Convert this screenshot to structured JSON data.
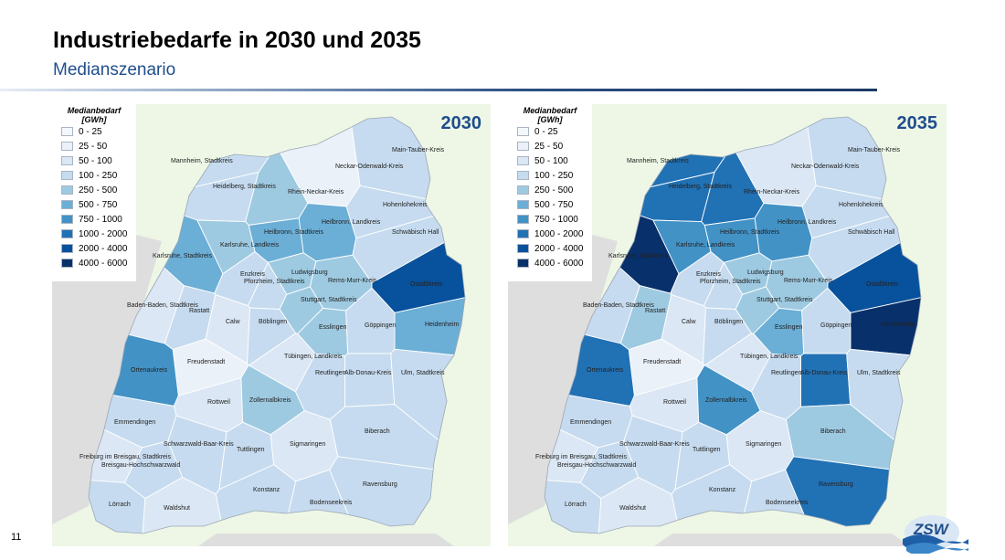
{
  "slide": {
    "title": "Industriebedarfe in 2030 und 2035",
    "subtitle": "Medianszenario",
    "page_number": "11",
    "logo_text": "ZSW"
  },
  "legend": {
    "title_line1": "Medianbedarf",
    "title_line2": "[GWh]",
    "classes": [
      {
        "label": "0 - 25",
        "color": "#f4f7fb"
      },
      {
        "label": "25 - 50",
        "color": "#eaf1f9"
      },
      {
        "label": "50 - 100",
        "color": "#dbe7f4"
      },
      {
        "label": "100 - 250",
        "color": "#c6dbef"
      },
      {
        "label": "250 - 500",
        "color": "#9ecae1"
      },
      {
        "label": "500 - 750",
        "color": "#6baed6"
      },
      {
        "label": "750 - 1000",
        "color": "#4292c6"
      },
      {
        "label": "1000 - 2000",
        "color": "#2171b5"
      },
      {
        "label": "2000 - 4000",
        "color": "#08519c"
      },
      {
        "label": "4000 - 6000",
        "color": "#08306b"
      }
    ]
  },
  "maps": [
    {
      "year": "2030"
    },
    {
      "year": "2035"
    }
  ],
  "regions": [
    {
      "name": "Main-Tauber-Kreis",
      "class_2030": 3,
      "class_2035": 3
    },
    {
      "name": "Mannheim, Stadtkreis",
      "class_2030": 3,
      "class_2035": 7
    },
    {
      "name": "Neckar-Odenwald-Kreis",
      "class_2030": 1,
      "class_2035": 2
    },
    {
      "name": "Heidelberg, Stadtkreis",
      "class_2030": 3,
      "class_2035": 7
    },
    {
      "name": "Rhein-Neckar-Kreis",
      "class_2030": 4,
      "class_2035": 7
    },
    {
      "name": "Hohenlohekreis",
      "class_2030": 3,
      "class_2035": 3
    },
    {
      "name": "Heilbronn, Landkreis",
      "class_2030": 5,
      "class_2035": 6
    },
    {
      "name": "Heilbronn, Stadtkreis",
      "class_2030": 5,
      "class_2035": 6
    },
    {
      "name": "Schwäbisch Hall",
      "class_2030": 3,
      "class_2035": 3
    },
    {
      "name": "Karlsruhe, Landkreis",
      "class_2030": 4,
      "class_2035": 6
    },
    {
      "name": "Karlsruhe, Stadtkreis",
      "class_2030": 5,
      "class_2035": 9
    },
    {
      "name": "Enzkreis",
      "class_2030": 3,
      "class_2035": 3
    },
    {
      "name": "Ludwigsburg",
      "class_2030": 4,
      "class_2035": 4
    },
    {
      "name": "Pforzheim, Stadtkreis",
      "class_2030": 3,
      "class_2035": 3
    },
    {
      "name": "Rems-Murr-Kreis",
      "class_2030": 4,
      "class_2035": 4
    },
    {
      "name": "Ostalbkreis",
      "class_2030": 8,
      "class_2035": 8
    },
    {
      "name": "Stuttgart, Stadtkreis",
      "class_2030": 4,
      "class_2035": 4
    },
    {
      "name": "Baden-Baden, Stadtkreis",
      "class_2030": 2,
      "class_2035": 3
    },
    {
      "name": "Rastatt",
      "class_2030": 3,
      "class_2035": 4
    },
    {
      "name": "Calw",
      "class_2030": 2,
      "class_2035": 2
    },
    {
      "name": "Böblingen",
      "class_2030": 3,
      "class_2035": 3
    },
    {
      "name": "Esslingen",
      "class_2030": 4,
      "class_2035": 5
    },
    {
      "name": "Göppingen",
      "class_2030": 3,
      "class_2035": 3
    },
    {
      "name": "Heidenheim",
      "class_2030": 5,
      "class_2035": 9
    },
    {
      "name": "Freudenstadt",
      "class_2030": 1,
      "class_2035": 1
    },
    {
      "name": "Ortenaukreis",
      "class_2030": 6,
      "class_2035": 7
    },
    {
      "name": "Tübingen, Landkreis",
      "class_2030": 2,
      "class_2035": 2
    },
    {
      "name": "Reutlingen",
      "class_2030": 3,
      "class_2035": 3
    },
    {
      "name": "Alb-Donau-Kreis",
      "class_2030": 3,
      "class_2035": 7
    },
    {
      "name": "Ulm, Stadtkreis",
      "class_2030": 3,
      "class_2035": 3
    },
    {
      "name": "Rottweil",
      "class_2030": 2,
      "class_2035": 2
    },
    {
      "name": "Zollernalbkreis",
      "class_2030": 4,
      "class_2035": 6
    },
    {
      "name": "Emmendingen",
      "class_2030": 3,
      "class_2035": 3
    },
    {
      "name": "Biberach",
      "class_2030": 3,
      "class_2035": 4
    },
    {
      "name": "Schwarzwald-Baar-Kreis",
      "class_2030": 3,
      "class_2035": 3
    },
    {
      "name": "Tuttlingen",
      "class_2030": 3,
      "class_2035": 3
    },
    {
      "name": "Sigmaringen",
      "class_2030": 2,
      "class_2035": 2
    },
    {
      "name": "Freiburg im Breisgau, Stadtkreis",
      "class_2030": 2,
      "class_2035": 2
    },
    {
      "name": "Breisgau-Hochschwarzwald",
      "class_2030": 3,
      "class_2035": 3
    },
    {
      "name": "Konstanz",
      "class_2030": 3,
      "class_2035": 3
    },
    {
      "name": "Ravensburg",
      "class_2030": 3,
      "class_2035": 7
    },
    {
      "name": "Bodenseekreis",
      "class_2030": 3,
      "class_2035": 3
    },
    {
      "name": "Lörrach",
      "class_2030": 3,
      "class_2035": 3
    },
    {
      "name": "Waldshut",
      "class_2030": 2,
      "class_2035": 2
    }
  ]
}
